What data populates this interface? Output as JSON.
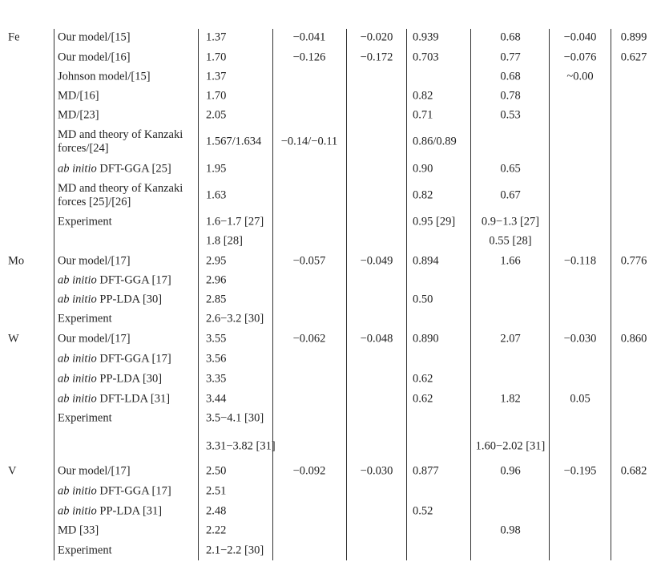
{
  "table": {
    "rows": [
      {
        "element": "Fe",
        "method": "Our model/[15]",
        "values": [
          "1.37",
          "−0.041",
          "−0.020",
          "0.939",
          "0.68",
          "−0.040",
          "0.899"
        ]
      },
      {
        "method": "Our model/[16]",
        "values": [
          "1.70",
          "−0.126",
          "−0.172",
          "0.703",
          "0.77",
          "−0.076",
          "0.627"
        ]
      },
      {
        "method": "Johnson model/[15]",
        "values": [
          "1.37",
          null,
          null,
          null,
          "0.68",
          "~0.00",
          null
        ]
      },
      {
        "method": "MD/[16]",
        "values": [
          "1.70",
          null,
          null,
          "0.82",
          "0.78",
          null,
          null
        ]
      },
      {
        "method": "MD/[23]",
        "values": [
          "2.05",
          null,
          null,
          "0.71",
          "0.53",
          null,
          null
        ]
      },
      {
        "method": "MD and theory of Kanzaki forces/[24]",
        "values": [
          "1.567/1.634",
          "−0.14/−0.11",
          null,
          "0.86/0.89",
          null,
          null,
          null
        ]
      },
      {
        "method_italic": "ab initio",
        "method": "DFT-GGA [25]",
        "values": [
          "1.95",
          null,
          null,
          "0.90",
          "0.65",
          null,
          null
        ]
      },
      {
        "method": "MD and theory of Kanzaki forces [25]/[26]",
        "values": [
          "1.63",
          null,
          null,
          "0.82",
          "0.67",
          null,
          null
        ]
      },
      {
        "method": "Experiment",
        "values": [
          "1.6−1.7 [27]",
          null,
          null,
          "0.95 [29]",
          "0.9−1.3 [27]",
          null,
          null
        ]
      },
      {
        "values": [
          "1.8 [28]",
          null,
          null,
          null,
          "0.55 [28]",
          null,
          null
        ]
      },
      {
        "element": "Mo",
        "method": "Our model/[17]",
        "values": [
          "2.95",
          "−0.057",
          "−0.049",
          "0.894",
          "1.66",
          "−0.118",
          "0.776"
        ]
      },
      {
        "method_italic": "ab initio",
        "method": "DFT-GGA [17]",
        "values": [
          "2.96",
          null,
          null,
          null,
          null,
          null,
          null
        ]
      },
      {
        "method_italic": "ab initio",
        "method": "PP-LDA [30]",
        "values": [
          "2.85",
          null,
          null,
          "0.50",
          null,
          null,
          null
        ]
      },
      {
        "method": "Experiment",
        "values": [
          "2.6−3.2 [30]",
          null,
          null,
          null,
          null,
          null,
          null
        ]
      },
      {
        "element": "W",
        "method": "Our model/[17]",
        "values": [
          "3.55",
          "−0.062",
          "−0.048",
          "0.890",
          "2.07",
          "−0.030",
          "0.860"
        ]
      },
      {
        "method_italic": "ab initio",
        "method": "DFT-GGA [17]",
        "values": [
          "3.56",
          null,
          null,
          null,
          null,
          null,
          null
        ]
      },
      {
        "method_italic": "ab initio",
        "method": "PP-LDA [30]",
        "values": [
          "3.35",
          null,
          null,
          "0.62",
          null,
          null,
          null
        ]
      },
      {
        "method_italic": "ab initio",
        "method": "DFT-LDA [31]",
        "values": [
          "3.44",
          null,
          null,
          "0.62",
          "1.82",
          "0.05",
          null
        ]
      },
      {
        "method": "Experiment",
        "values": [
          "3.5−4.1 [30]",
          null,
          null,
          null,
          null,
          null,
          null
        ]
      },
      {
        "values": [
          "3.31−3.82 [31]",
          null,
          null,
          null,
          "1.60−2.02 [31]",
          null,
          null
        ]
      },
      {
        "element": "V",
        "method": "Our model/[17]",
        "values": [
          "2.50",
          "−0.092",
          "−0.030",
          "0.877",
          "0.96",
          "−0.195",
          "0.682"
        ]
      },
      {
        "method_italic": "ab initio",
        "method": "DFT-GGA [17]",
        "values": [
          "2.51",
          null,
          null,
          null,
          null,
          null,
          null
        ]
      },
      {
        "method_italic": "ab initio",
        "method": "PP-LDA [31]",
        "values": [
          "2.48",
          null,
          null,
          "0.52",
          null,
          null,
          null
        ]
      },
      {
        "method": "MD [33]",
        "values": [
          "2.22",
          null,
          null,
          null,
          "0.98",
          null,
          null
        ]
      },
      {
        "method": "Experiment",
        "values": [
          "2.1−2.2 [30]",
          null,
          null,
          null,
          null,
          null,
          null
        ]
      }
    ]
  }
}
